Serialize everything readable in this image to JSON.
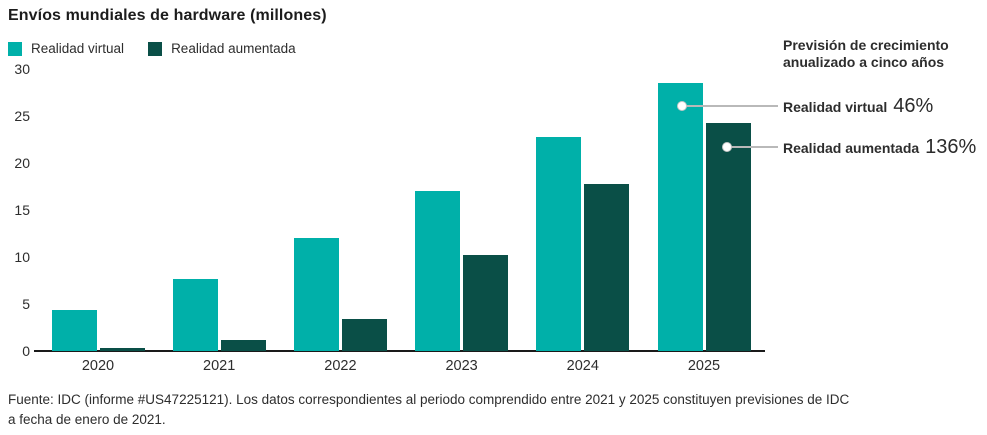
{
  "title": "Envíos mundiales de hardware (millones)",
  "chart_data": {
    "type": "bar",
    "title": "Envíos mundiales de hardware (millones)",
    "categories": [
      "2020",
      "2021",
      "2022",
      "2023",
      "2024",
      "2025"
    ],
    "series": [
      {
        "name": "Realidad virtual",
        "color": "#00b0a9",
        "values": [
          4.4,
          7.7,
          12.0,
          17.0,
          22.8,
          28.5
        ]
      },
      {
        "name": "Realidad aumentada",
        "color": "#0a4f47",
        "values": [
          0.3,
          1.2,
          3.4,
          10.2,
          17.8,
          24.3
        ]
      }
    ],
    "xlabel": "",
    "ylabel": "",
    "unit": "millones",
    "ylim": [
      0,
      30
    ],
    "yticks": [
      0,
      5,
      10,
      15,
      20,
      25,
      30
    ],
    "grid": false,
    "legend_position": "top-left"
  },
  "annotation": {
    "header_line1": "Previsión de crecimiento",
    "header_line2": "anualizado a cinco años",
    "items": [
      {
        "label": "Realidad virtual",
        "value": "46%"
      },
      {
        "label": "Realidad aumentada",
        "value": "136%"
      }
    ]
  },
  "footer": {
    "line1": "Fuente: IDC (informe #US47225121). Los datos correspondientes al periodo comprendido entre 2021 y 2025 constituyen previsiones de IDC",
    "line2": "a fecha de enero de 2021."
  },
  "colors": {
    "virtual_reality": "#00b0a9",
    "augmented_reality": "#0a4f47",
    "connector_line": "#b9b9b9",
    "axis_line": "#1a1a1a",
    "text": "#2d2d2d"
  }
}
